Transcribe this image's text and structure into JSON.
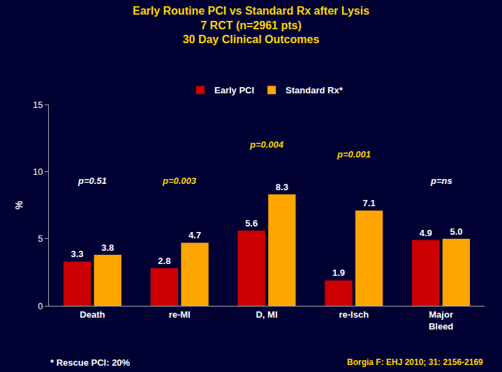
{
  "chart_data": {
    "type": "bar",
    "title": "Early Routine PCI vs Standard Rx after Lysis\n7 RCT (n=2961 pts)\n30 Day Clinical Outcomes",
    "ylabel": "%",
    "categories": [
      "Death",
      "re-MI",
      "D, MI",
      "re-Isch",
      "Major\nBleed"
    ],
    "series": [
      {
        "name": "Early PCI",
        "color": "#CC0000",
        "values": [
          3.3,
          2.8,
          5.6,
          1.9,
          4.9
        ],
        "value_labels": [
          "3.3",
          "2.8",
          "5.6",
          "1.9",
          "4.9"
        ]
      },
      {
        "name": "Standard Rx*",
        "color": "#FFA500",
        "values": [
          3.8,
          4.7,
          8.3,
          7.1,
          5.0
        ],
        "value_labels": [
          "3.8",
          "4.7",
          "8.3",
          "7.1",
          "5.0"
        ]
      }
    ],
    "annotations": [
      {
        "text": "p=0.51",
        "x": "Death",
        "y": 8.8,
        "color": "white"
      },
      {
        "text": "p=0.003",
        "x": "re-MI",
        "y": 8.8,
        "color": "#FFD700"
      },
      {
        "text": "p=0.004",
        "x": "D, MI",
        "y": 11.5,
        "color": "#FFD700"
      },
      {
        "text": "p=0.001",
        "x": "re-Isch",
        "y": 10.8,
        "color": "#FFD700"
      },
      {
        "text": "p=ns",
        "x": "Major\nBleed",
        "y": 8.8,
        "color": "white"
      }
    ],
    "notes": [
      {
        "text": "* Rescue PCI: 20%",
        "color": "white"
      },
      {
        "text": "Borgia F: EHJ 2010; 31: 2156-2169",
        "color": "#FFD700"
      }
    ],
    "ylim": [
      0,
      15
    ],
    "yticks": [
      0,
      5,
      10,
      15
    ],
    "grid": false,
    "legend": "top",
    "data_labels": true
  }
}
